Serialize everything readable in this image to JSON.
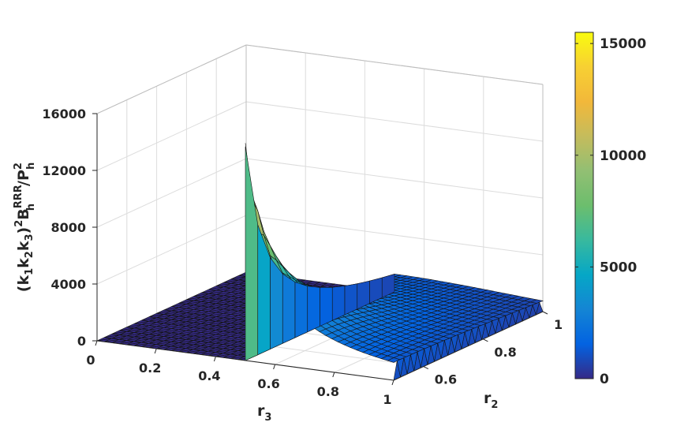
{
  "chart_data": {
    "type": "surface",
    "title": "",
    "x_axis": {
      "name": "r",
      "subscript": "3",
      "range": [
        0,
        1
      ],
      "ticks": [
        "0",
        "0.2",
        "0.4",
        "0.6",
        "0.8",
        "1"
      ]
    },
    "y_axis": {
      "name": "r",
      "subscript": "2",
      "range": [
        0.5,
        1
      ],
      "ticks": [
        "0.6",
        "0.8",
        "1"
      ]
    },
    "z_axis": {
      "label": "(k1k2k3)^2 B_h^RRR / P_h^2",
      "range": [
        0,
        16000
      ],
      "ticks": [
        "0",
        "4000",
        "8000",
        "12000",
        "16000"
      ]
    },
    "colorbar": {
      "colormap": "parula",
      "range": [
        0,
        15500
      ],
      "ticks": [
        "0",
        "5000",
        "10000",
        "15000"
      ]
    },
    "grid": true,
    "surface_samples": [
      {
        "r3": 0.5,
        "r2": 0.5,
        "z": 15500
      },
      {
        "r3": 0.5,
        "r2": 0.55,
        "z": 12000
      },
      {
        "r3": 0.5,
        "r2": 0.6,
        "z": 8000
      },
      {
        "r3": 0.5,
        "r2": 0.7,
        "z": 5000
      },
      {
        "r3": 0.5,
        "r2": 0.8,
        "z": 3500
      },
      {
        "r3": 0.5,
        "r2": 1.0,
        "z": 2500
      },
      {
        "r3": 0.7,
        "r2": 0.7,
        "z": 3300
      },
      {
        "r3": 1.0,
        "r2": 1.0,
        "z": 2000
      },
      {
        "r3": 0.1,
        "r2": 0.9,
        "z": 0
      },
      {
        "r3": 1.0,
        "r2": 0.5,
        "z": 0
      }
    ]
  }
}
